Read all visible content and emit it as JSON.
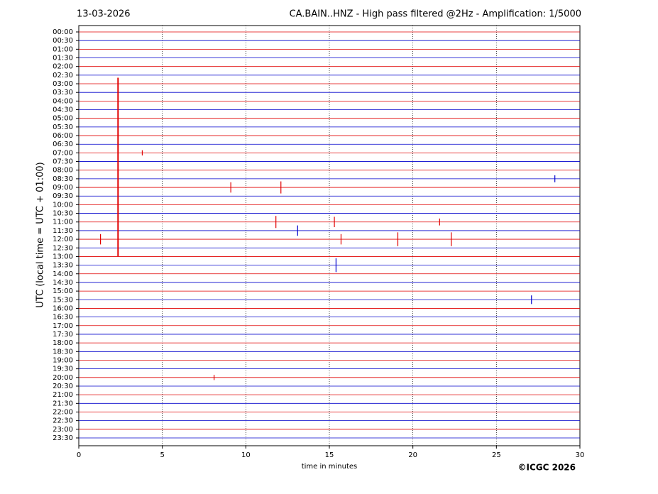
{
  "chart_data": {
    "type": "helicorder",
    "title_left": "13-03-2026",
    "title": "CA.BAIN..HNZ - High pass filtered @2Hz - Amplification: 1/5000",
    "xlabel": "time in minutes",
    "ylabel": "UTC (local time = UTC + 01:00)",
    "copyright": "©ICGC 2026",
    "categories": [
      "00:00",
      "00:30",
      "01:00",
      "01:30",
      "02:00",
      "02:30",
      "03:00",
      "03:30",
      "04:00",
      "04:30",
      "05:00",
      "05:30",
      "06:00",
      "06:30",
      "07:00",
      "07:30",
      "08:00",
      "08:30",
      "09:00",
      "09:30",
      "10:00",
      "10:30",
      "11:00",
      "11:30",
      "12:00",
      "12:30",
      "13:00",
      "13:30",
      "14:00",
      "14:30",
      "15:00",
      "15:30",
      "16:00",
      "16:30",
      "17:00",
      "17:30",
      "18:00",
      "18:30",
      "19:00",
      "19:30",
      "20:00",
      "20:30",
      "21:00",
      "21:30",
      "22:00",
      "22:30",
      "23:00",
      "23:30"
    ],
    "colors": [
      "#e00000",
      "#0000cc"
    ],
    "xlim": [
      0,
      30
    ],
    "xticks": [
      0,
      5,
      10,
      15,
      20,
      25,
      30
    ],
    "grid": true,
    "quake": {
      "minute": 2.35,
      "from_row": 6,
      "to_row": 26
    },
    "events": [
      {
        "row": 14,
        "minute": 3.8,
        "amplitude": 0.3
      },
      {
        "row": 17,
        "minute": 28.5,
        "amplitude": 0.4
      },
      {
        "row": 18,
        "minute": 9.1,
        "amplitude": 0.6
      },
      {
        "row": 18,
        "minute": 12.1,
        "amplitude": 0.7
      },
      {
        "row": 22,
        "minute": 11.8,
        "amplitude": 0.7
      },
      {
        "row": 22,
        "minute": 15.3,
        "amplitude": 0.6
      },
      {
        "row": 22,
        "minute": 21.6,
        "amplitude": 0.4
      },
      {
        "row": 23,
        "minute": 13.1,
        "amplitude": 0.6
      },
      {
        "row": 24,
        "minute": 1.3,
        "amplitude": 0.6
      },
      {
        "row": 24,
        "minute": 15.7,
        "amplitude": 0.6
      },
      {
        "row": 24,
        "minute": 19.1,
        "amplitude": 0.8
      },
      {
        "row": 24,
        "minute": 22.3,
        "amplitude": 0.8
      },
      {
        "row": 27,
        "minute": 15.4,
        "amplitude": 0.8
      },
      {
        "row": 31,
        "minute": 27.1,
        "amplitude": 0.5
      },
      {
        "row": 40,
        "minute": 8.1,
        "amplitude": 0.3
      }
    ]
  }
}
